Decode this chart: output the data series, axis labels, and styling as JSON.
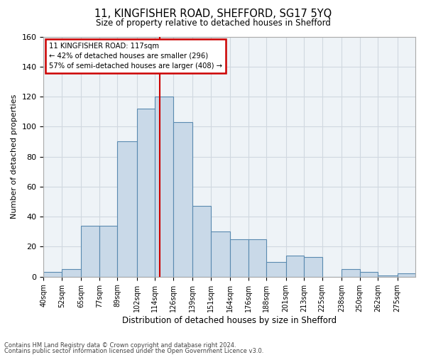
{
  "title": "11, KINGFISHER ROAD, SHEFFORD, SG17 5YQ",
  "subtitle": "Size of property relative to detached houses in Shefford",
  "xlabel": "Distribution of detached houses by size in Shefford",
  "ylabel": "Number of detached properties",
  "footer1": "Contains HM Land Registry data © Crown copyright and database right 2024.",
  "footer2": "Contains public sector information licensed under the Open Government Licence v3.0.",
  "annotation_line1": "11 KINGFISHER ROAD: 117sqm",
  "annotation_line2": "← 42% of detached houses are smaller (296)",
  "annotation_line3": "57% of semi-detached houses are larger (408) →",
  "property_value": 117,
  "bar_color": "#c9d9e8",
  "bar_edge_color": "#5a8ab0",
  "vline_color": "#cc0000",
  "grid_color": "#d0d8e0",
  "background_color": "#eef3f7",
  "bins": [
    40,
    52,
    65,
    77,
    89,
    102,
    114,
    126,
    139,
    151,
    164,
    176,
    188,
    201,
    213,
    225,
    238,
    250,
    262,
    275,
    287
  ],
  "counts": [
    3,
    5,
    34,
    34,
    90,
    112,
    120,
    103,
    47,
    30,
    25,
    25,
    10,
    14,
    13,
    0,
    5,
    3,
    1,
    2
  ],
  "ylim": [
    0,
    160
  ],
  "yticks": [
    0,
    20,
    40,
    60,
    80,
    100,
    120,
    140,
    160
  ]
}
